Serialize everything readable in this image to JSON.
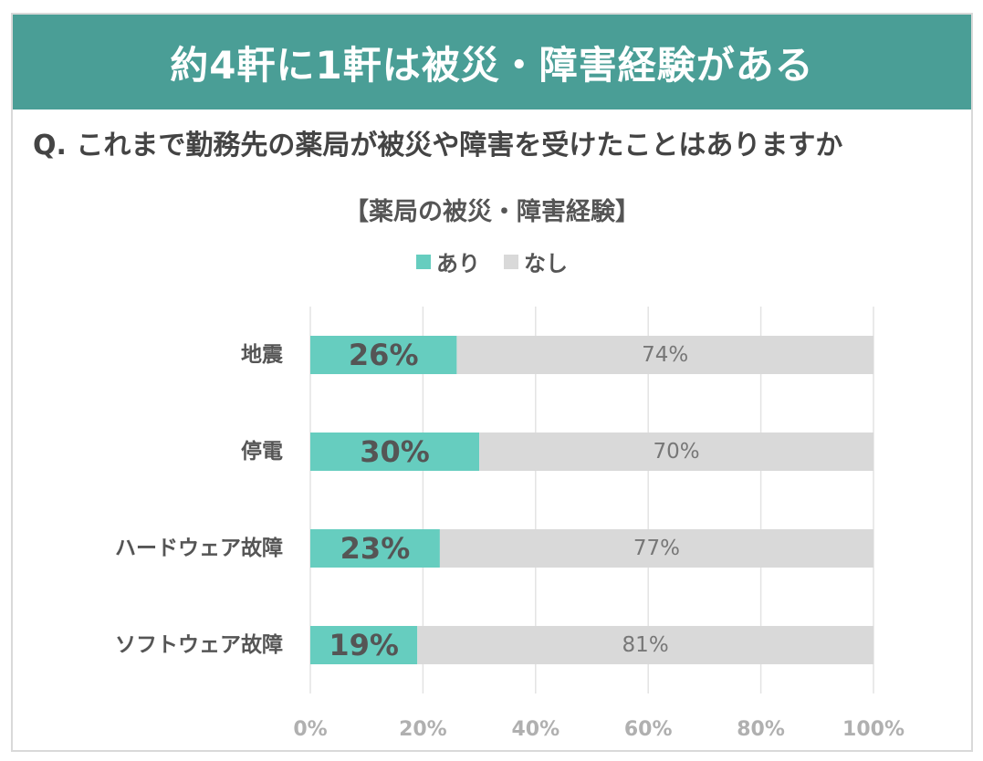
{
  "banner": {
    "title": "約4軒に1軒は被災・障害経験がある"
  },
  "question": "Q. これまで勤務先の薬局が被災や障害を受けたことはありますか",
  "colors": {
    "banner_bg": "#4a9e96",
    "yes": "#66cdbf",
    "no": "#d9d9d9",
    "grid": "#e3e3e3"
  },
  "chart_data": {
    "type": "bar",
    "orientation": "horizontal",
    "stacked": true,
    "title": "【薬局の被災・障害経験】",
    "categories": [
      "地震",
      "停電",
      "ハードウェア故障",
      "ソフトウェア故障"
    ],
    "series": [
      {
        "name": "あり",
        "values": [
          26,
          30,
          23,
          19
        ],
        "labels": [
          "26%",
          "30%",
          "23%",
          "19%"
        ]
      },
      {
        "name": "なし",
        "values": [
          74,
          70,
          77,
          81
        ],
        "labels": [
          "74%",
          "70%",
          "77%",
          "81%"
        ]
      }
    ],
    "xlim": [
      0,
      100
    ],
    "xticks": [
      "0%",
      "20%",
      "40%",
      "60%",
      "80%",
      "100%"
    ],
    "grid": true,
    "legend": "top-center"
  }
}
